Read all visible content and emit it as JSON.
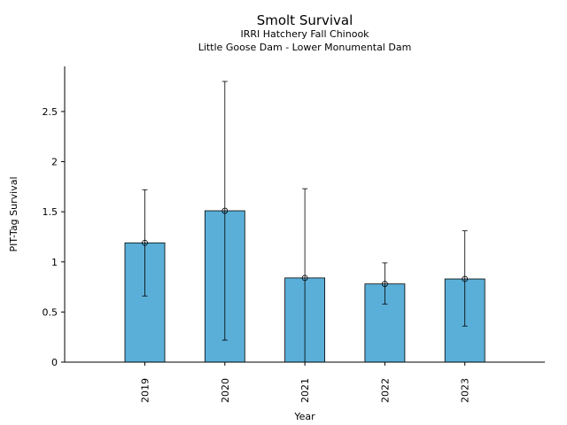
{
  "chart_data": {
    "type": "bar",
    "title": "Smolt Survival",
    "subtitle_lines": [
      "IRRI Hatchery Fall Chinook",
      "Little Goose Dam - Lower Monumental Dam"
    ],
    "xlabel": "Year",
    "ylabel": "PIT-Tag Survival",
    "categories": [
      "2019",
      "2020",
      "2021",
      "2022",
      "2023"
    ],
    "values": [
      1.19,
      1.51,
      0.84,
      0.78,
      0.83
    ],
    "error_low": [
      0.66,
      0.22,
      0.0,
      0.58,
      0.36
    ],
    "error_high": [
      1.72,
      2.8,
      1.73,
      0.99,
      1.31
    ],
    "ylim": [
      0,
      2.95
    ],
    "yticks": [
      0,
      0.5,
      1,
      1.5,
      2,
      2.5
    ],
    "ytick_labels": [
      "0",
      "0.5",
      "1",
      "1.5",
      "2",
      "2.5"
    ],
    "grid": false,
    "legend": "none",
    "bar_color": "#5aafd8",
    "edge_color": "#000000"
  }
}
